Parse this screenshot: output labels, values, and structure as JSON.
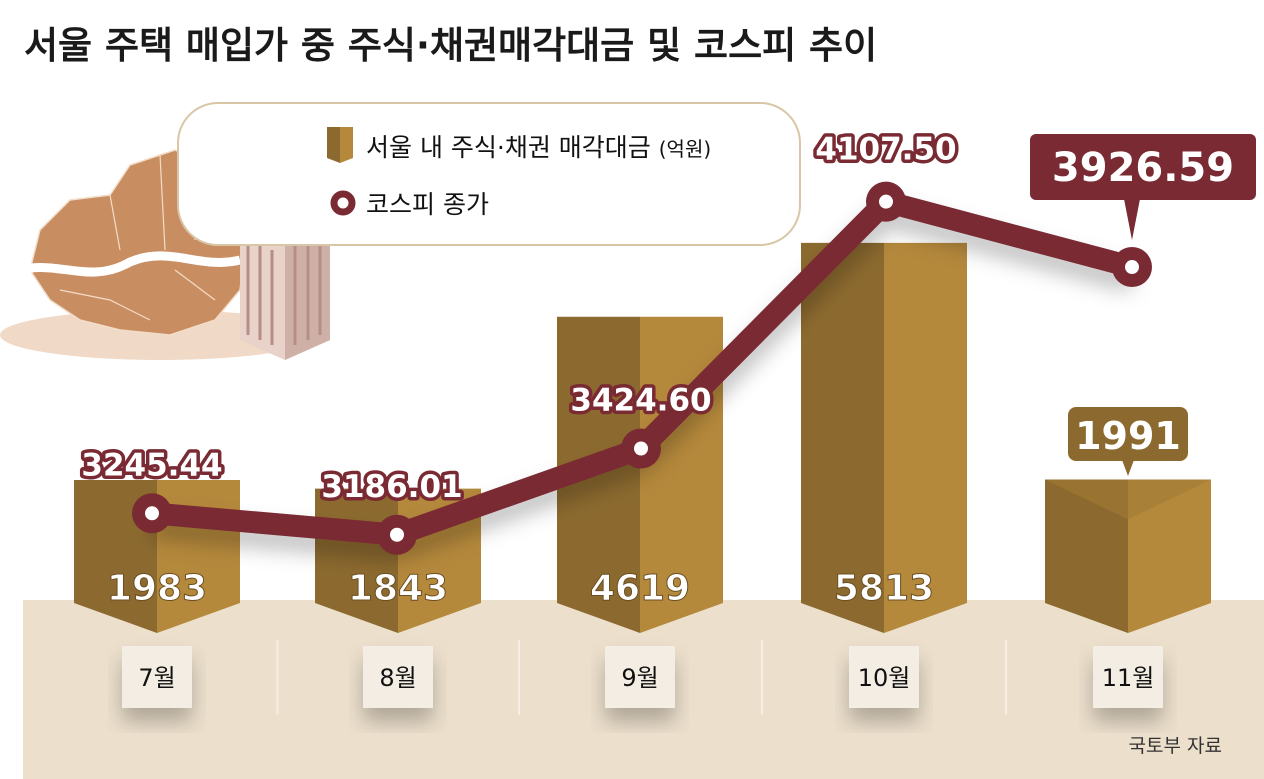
{
  "title": "서울 주택 매입가 중 주식·채권매각대금 및 코스피 추이",
  "source": "국토부 자료",
  "colors": {
    "bar_dark": "#8c6a2f",
    "bar_light": "#b5893c",
    "line": "#7a2a33",
    "ground": "#ecdfcc",
    "label_box": "#f3ede4"
  },
  "legend": {
    "bar_label": "서울 내 주식·채권 매각대금",
    "bar_unit": "(억원)",
    "line_label": "코스피 종가",
    "bar_icon": "gold-prism-icon",
    "line_icon": "ring-marker-icon"
  },
  "illustration": {
    "map_icon": "seoul-map-icon",
    "building_icon": "apartment-building-icon"
  },
  "chart_data": {
    "type": "bar+line",
    "title": "서울 주택 매입가 중 주식·채권매각대금 및 코스피 추이",
    "categories": [
      "7월",
      "8월",
      "9월",
      "10월",
      "11월"
    ],
    "series": [
      {
        "name": "서울 내 주식·채권 매각대금 (억원)",
        "type": "bar",
        "values": [
          1983,
          1843,
          4619,
          5813,
          1991
        ],
        "labels": [
          "1983",
          "1843",
          "4619",
          "5813",
          "1991"
        ]
      },
      {
        "name": "코스피 종가",
        "type": "line",
        "values": [
          3245.44,
          3186.01,
          3424.6,
          4107.5,
          3926.59
        ],
        "labels": [
          "3245.44",
          "3186.01",
          "3424.60",
          "4107.50",
          "3926.59"
        ]
      }
    ],
    "highlight_last": true,
    "grid": false
  }
}
